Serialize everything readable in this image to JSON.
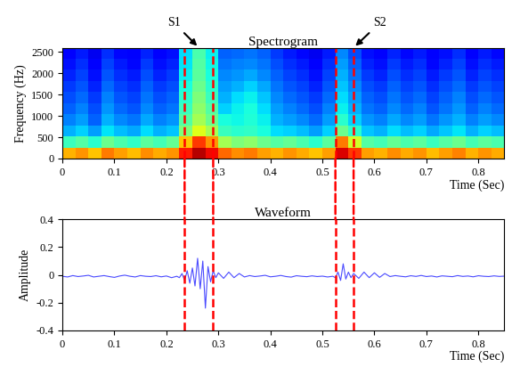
{
  "chart_data": [
    {
      "type": "heatmap",
      "title": "Spectrogram",
      "x_label": "Time (Sec)",
      "y_label": "Frequency (Hz)",
      "xlim": [
        0,
        0.85
      ],
      "ylim": [
        0,
        2600
      ],
      "xticks": [
        0,
        0.1,
        0.2,
        0.3,
        0.4,
        0.5,
        0.6,
        0.7,
        0.8
      ],
      "yticks": [
        0,
        500,
        1000,
        1500,
        2000,
        2500
      ],
      "x_edges": [
        0,
        0.025,
        0.05,
        0.075,
        0.1,
        0.125,
        0.15,
        0.175,
        0.2,
        0.225,
        0.25,
        0.275,
        0.3,
        0.325,
        0.35,
        0.375,
        0.4,
        0.425,
        0.45,
        0.475,
        0.5,
        0.525,
        0.55,
        0.575,
        0.6,
        0.625,
        0.65,
        0.675,
        0.7,
        0.725,
        0.75,
        0.775,
        0.8,
        0.825,
        0.85
      ],
      "y_edges": [
        0,
        260,
        520,
        780,
        1040,
        1300,
        1560,
        1820,
        2080,
        2340,
        2600
      ],
      "color_range": [
        0,
        100
      ],
      "cells": [
        [
          72,
          75,
          70,
          78,
          74,
          71,
          76,
          73,
          75,
          88,
          95,
          90,
          80,
          76,
          78,
          74,
          72,
          75,
          73,
          70,
          74,
          92,
          85,
          74,
          72,
          76,
          73,
          75,
          71,
          74,
          77,
          72,
          75,
          73
        ],
        [
          42,
          45,
          40,
          48,
          44,
          41,
          46,
          43,
          47,
          70,
          85,
          75,
          55,
          50,
          52,
          48,
          45,
          47,
          44,
          40,
          46,
          78,
          60,
          45,
          43,
          47,
          44,
          46,
          42,
          45,
          48,
          43,
          46,
          44
        ],
        [
          30,
          33,
          28,
          35,
          31,
          29,
          34,
          30,
          32,
          50,
          62,
          55,
          42,
          40,
          41,
          38,
          34,
          33,
          31,
          28,
          33,
          48,
          40,
          32,
          30,
          34,
          31,
          33,
          29,
          32,
          35,
          30,
          33,
          31
        ],
        [
          25,
          28,
          22,
          30,
          26,
          24,
          29,
          25,
          27,
          45,
          55,
          48,
          38,
          37,
          39,
          36,
          30,
          28,
          26,
          23,
          28,
          40,
          33,
          27,
          25,
          29,
          26,
          28,
          24,
          27,
          30,
          25,
          28,
          26
        ],
        [
          22,
          25,
          20,
          27,
          23,
          21,
          26,
          22,
          24,
          42,
          52,
          45,
          33,
          36,
          38,
          34,
          28,
          25,
          23,
          20,
          25,
          36,
          30,
          24,
          22,
          26,
          23,
          25,
          21,
          24,
          27,
          22,
          25,
          23
        ],
        [
          20,
          23,
          18,
          25,
          21,
          19,
          24,
          20,
          22,
          40,
          50,
          42,
          30,
          34,
          36,
          32,
          26,
          23,
          21,
          18,
          23,
          34,
          28,
          22,
          20,
          24,
          21,
          23,
          19,
          22,
          25,
          20,
          23,
          21
        ],
        [
          18,
          21,
          16,
          23,
          19,
          17,
          22,
          18,
          20,
          38,
          48,
          40,
          28,
          30,
          33,
          29,
          24,
          21,
          19,
          16,
          21,
          32,
          26,
          20,
          18,
          22,
          19,
          21,
          17,
          20,
          23,
          18,
          21,
          19
        ],
        [
          16,
          19,
          14,
          21,
          17,
          15,
          20,
          16,
          18,
          36,
          46,
          38,
          26,
          27,
          29,
          26,
          22,
          19,
          17,
          14,
          19,
          30,
          24,
          18,
          16,
          20,
          17,
          19,
          15,
          18,
          21,
          16,
          19,
          17
        ],
        [
          14,
          17,
          12,
          19,
          15,
          13,
          18,
          14,
          16,
          35,
          45,
          37,
          24,
          25,
          26,
          24,
          20,
          17,
          15,
          12,
          17,
          28,
          22,
          16,
          14,
          18,
          15,
          17,
          13,
          16,
          19,
          14,
          17,
          15
        ],
        [
          12,
          15,
          10,
          17,
          13,
          11,
          16,
          12,
          14,
          34,
          44,
          36,
          22,
          23,
          24,
          22,
          18,
          15,
          13,
          10,
          15,
          26,
          20,
          14,
          12,
          16,
          13,
          15,
          11,
          14,
          17,
          12,
          15,
          13
        ]
      ],
      "annotations": [
        {
          "text": "S1",
          "start": 0.235,
          "end": 0.29
        },
        {
          "text": "S2",
          "start": 0.525,
          "end": 0.56
        }
      ]
    },
    {
      "type": "line",
      "title": "Waveform",
      "x_label": "Time (Sec)",
      "y_label": "Amplitude",
      "color": "#4a4aff",
      "xlim": [
        0,
        0.85
      ],
      "ylim": [
        -0.4,
        0.4
      ],
      "xticks": [
        0,
        0.1,
        0.2,
        0.3,
        0.4,
        0.5,
        0.6,
        0.7,
        0.8
      ],
      "yticks": [
        -0.4,
        -0.2,
        0,
        0.2,
        0.4
      ],
      "segments": [
        [
          0.235,
          0.29
        ],
        [
          0.525,
          0.56
        ]
      ],
      "x": [
        0,
        0.01,
        0.02,
        0.03,
        0.04,
        0.05,
        0.06,
        0.07,
        0.08,
        0.09,
        0.1,
        0.11,
        0.12,
        0.13,
        0.14,
        0.15,
        0.16,
        0.17,
        0.18,
        0.19,
        0.2,
        0.21,
        0.22,
        0.225,
        0.23,
        0.235,
        0.24,
        0.245,
        0.25,
        0.255,
        0.26,
        0.265,
        0.27,
        0.275,
        0.28,
        0.285,
        0.29,
        0.295,
        0.3,
        0.31,
        0.32,
        0.33,
        0.34,
        0.35,
        0.36,
        0.37,
        0.38,
        0.39,
        0.4,
        0.41,
        0.42,
        0.43,
        0.44,
        0.45,
        0.46,
        0.47,
        0.48,
        0.49,
        0.5,
        0.51,
        0.52,
        0.525,
        0.53,
        0.535,
        0.54,
        0.545,
        0.55,
        0.555,
        0.56,
        0.57,
        0.58,
        0.59,
        0.6,
        0.61,
        0.62,
        0.63,
        0.64,
        0.65,
        0.66,
        0.67,
        0.68,
        0.69,
        0.7,
        0.71,
        0.72,
        0.73,
        0.74,
        0.75,
        0.76,
        0.77,
        0.78,
        0.79,
        0.8,
        0.81,
        0.82,
        0.83,
        0.84,
        0.85
      ],
      "values": [
        -0.01,
        -0.015,
        -0.005,
        -0.012,
        -0.008,
        -0.003,
        -0.015,
        -0.01,
        -0.005,
        -0.012,
        -0.018,
        -0.008,
        -0.002,
        -0.01,
        -0.015,
        -0.005,
        -0.01,
        -0.012,
        -0.006,
        -0.014,
        -0.008,
        -0.02,
        -0.01,
        -0.02,
        0.01,
        -0.04,
        0.03,
        -0.06,
        0.05,
        -0.08,
        0.12,
        -0.1,
        0.1,
        -0.24,
        0.06,
        -0.05,
        0.03,
        -0.02,
        0.015,
        -0.025,
        0.02,
        -0.02,
        0.01,
        -0.015,
        -0.005,
        -0.012,
        -0.008,
        -0.003,
        -0.014,
        -0.01,
        -0.004,
        -0.012,
        -0.016,
        -0.006,
        -0.01,
        -0.013,
        -0.007,
        -0.012,
        -0.009,
        -0.015,
        -0.01,
        -0.02,
        0.02,
        -0.04,
        0.08,
        -0.03,
        0.02,
        -0.02,
        0.01,
        -0.025,
        0.02,
        -0.02,
        0.015,
        -0.018,
        0.01,
        -0.012,
        -0.005,
        -0.01,
        -0.014,
        -0.006,
        -0.011,
        -0.004,
        -0.012,
        -0.008,
        -0.015,
        -0.007,
        -0.01,
        -0.013,
        -0.005,
        -0.011,
        -0.008,
        -0.014,
        -0.006,
        -0.01,
        -0.012,
        -0.007,
        -0.011,
        -0.009
      ]
    }
  ]
}
